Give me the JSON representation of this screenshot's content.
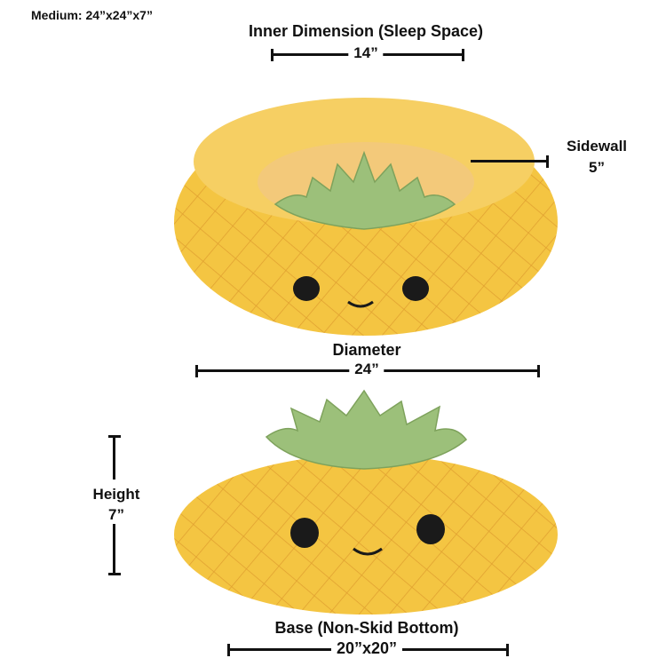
{
  "size_label": "Medium: 24”x24”x7”",
  "inner_dimension": {
    "title": "Inner Dimension (Sleep Space)",
    "value": "14”"
  },
  "sidewall": {
    "title": "Sidewall",
    "value": "5”"
  },
  "diameter": {
    "title": "Diameter",
    "value": "24”"
  },
  "height": {
    "title": "Height",
    "value": "7”"
  },
  "base": {
    "title": "Base (Non-Skid Bottom)",
    "value": "20”x20”"
  },
  "colors": {
    "bed_yellow": "#f4c542",
    "lattice": "#e0a030",
    "leaf_green": "#9cc07a",
    "inner": "#f3c97a"
  }
}
